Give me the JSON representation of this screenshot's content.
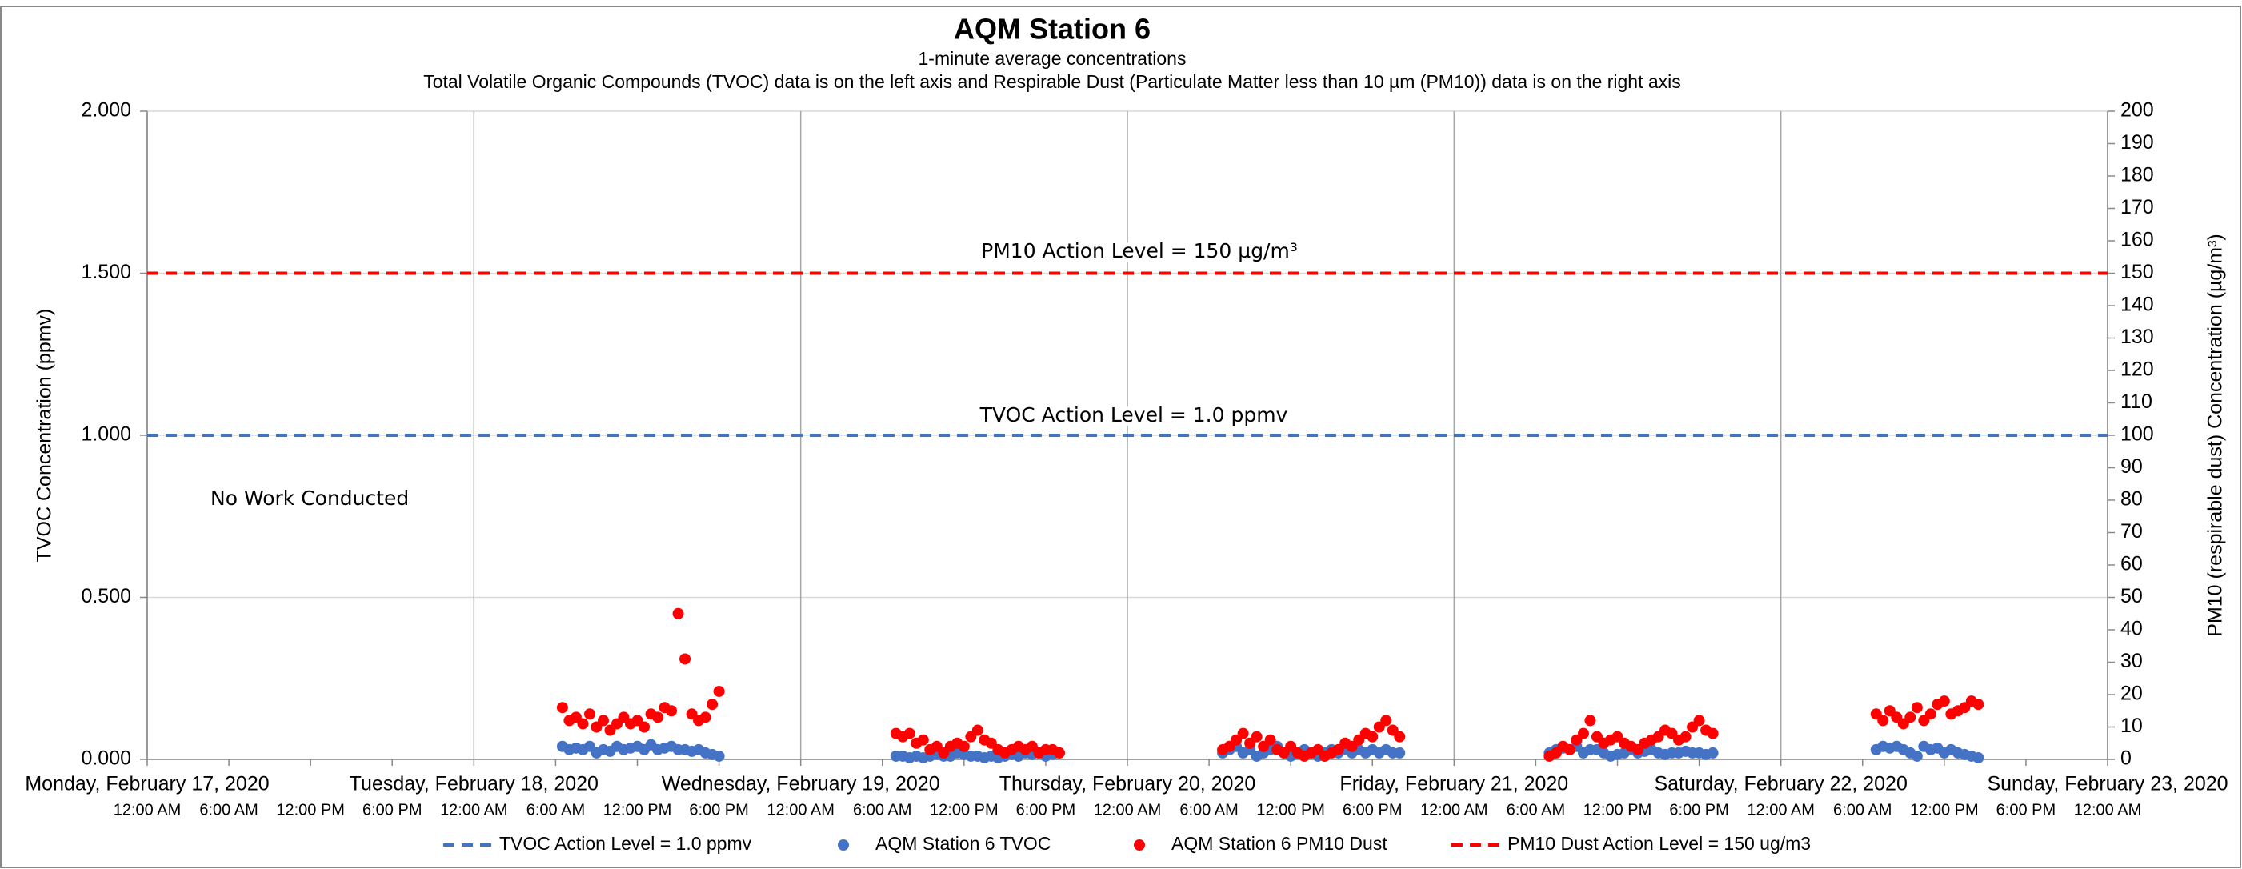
{
  "chart_data": {
    "type": "scatter",
    "title": "AQM Station 6",
    "subtitle": "1-minute average concentrations",
    "subtitle2": "Total Volatile Organic Compounds (TVOC) data is on the left axis and Respirable Dust (Particulate Matter less than 10 µm (PM10)) data is on the right axis",
    "ylabel": "TVOC Concentration (ppmv)",
    "y2label": "PM10 (respirable dust) Concentration (µg/m³)",
    "annotations": [
      "PM10 Action Level = 150 µg/m³",
      "TVOC Action Level = 1.0 ppmv",
      "No Work Conducted"
    ],
    "xlim": [
      "2020-02-17T00:00",
      "2020-02-23T00:00"
    ],
    "xticks": [
      {
        "value": "2020-02-17T00:00",
        "label": "Monday, February 17, 2020"
      },
      {
        "value": "2020-02-18T00:00",
        "label": "Tuesday, February 18, 2020"
      },
      {
        "value": "2020-02-19T00:00",
        "label": "Wednesday, February 19, 2020"
      },
      {
        "value": "2020-02-20T00:00",
        "label": "Thursday, February 20, 2020"
      },
      {
        "value": "2020-02-21T00:00",
        "label": "Friday, February 21, 2020"
      },
      {
        "value": "2020-02-22T00:00",
        "label": "Saturday, February 22, 2020"
      },
      {
        "value": "2020-02-23T00:00",
        "label": "Sunday, February 23, 2020"
      }
    ],
    "xticks_minor": [
      {
        "value": "2020-02-17T00:00",
        "label": "12:00 AM"
      },
      {
        "value": "2020-02-17T06:00",
        "label": "6:00 AM"
      },
      {
        "value": "2020-02-17T12:00",
        "label": "12:00 PM"
      },
      {
        "value": "2020-02-17T18:00",
        "label": "6:00 PM"
      },
      {
        "value": "2020-02-18T00:00",
        "label": "12:00 AM"
      },
      {
        "value": "2020-02-18T06:00",
        "label": "6:00 AM"
      },
      {
        "value": "2020-02-18T12:00",
        "label": "12:00 PM"
      },
      {
        "value": "2020-02-18T18:00",
        "label": "6:00 PM"
      },
      {
        "value": "2020-02-19T00:00",
        "label": "12:00 AM"
      },
      {
        "value": "2020-02-19T06:00",
        "label": "6:00 AM"
      },
      {
        "value": "2020-02-19T12:00",
        "label": "12:00 PM"
      },
      {
        "value": "2020-02-19T18:00",
        "label": "6:00 PM"
      },
      {
        "value": "2020-02-20T00:00",
        "label": "12:00 AM"
      },
      {
        "value": "2020-02-20T06:00",
        "label": "6:00 AM"
      },
      {
        "value": "2020-02-20T12:00",
        "label": "12:00 PM"
      },
      {
        "value": "2020-02-20T18:00",
        "label": "6:00 PM"
      },
      {
        "value": "2020-02-21T00:00",
        "label": "12:00 AM"
      },
      {
        "value": "2020-02-21T06:00",
        "label": "6:00 AM"
      },
      {
        "value": "2020-02-21T12:00",
        "label": "12:00 PM"
      },
      {
        "value": "2020-02-21T18:00",
        "label": "6:00 PM"
      },
      {
        "value": "2020-02-22T00:00",
        "label": "12:00 AM"
      },
      {
        "value": "2020-02-22T06:00",
        "label": "6:00 AM"
      },
      {
        "value": "2020-02-22T12:00",
        "label": "12:00 PM"
      },
      {
        "value": "2020-02-22T18:00",
        "label": "6:00 PM"
      },
      {
        "value": "2020-02-23T00:00",
        "label": "12:00 AM"
      }
    ],
    "ylim": [
      0,
      2
    ],
    "yticks": [
      {
        "value": 0,
        "label": "0.000"
      },
      {
        "value": 0.5,
        "label": "0.500"
      },
      {
        "value": 1,
        "label": "1.000"
      },
      {
        "value": 1.5,
        "label": "1.500"
      },
      {
        "value": 2,
        "label": "2.000"
      }
    ],
    "y2lim": [
      0,
      200
    ],
    "y2ticks": [
      0,
      10,
      20,
      30,
      40,
      50,
      60,
      70,
      80,
      90,
      100,
      110,
      120,
      130,
      140,
      150,
      160,
      170,
      180,
      190,
      200
    ],
    "grid": true,
    "legend": "bottom",
    "x": [
      "2020-02-18T06:30",
      "2020-02-18T07:00",
      "2020-02-18T07:30",
      "2020-02-18T08:00",
      "2020-02-18T08:30",
      "2020-02-18T09:00",
      "2020-02-18T09:30",
      "2020-02-18T10:00",
      "2020-02-18T10:30",
      "2020-02-18T11:00",
      "2020-02-18T11:30",
      "2020-02-18T12:00",
      "2020-02-18T12:30",
      "2020-02-18T13:00",
      "2020-02-18T13:30",
      "2020-02-18T14:00",
      "2020-02-18T14:30",
      "2020-02-18T15:00",
      "2020-02-18T15:30",
      "2020-02-18T16:00",
      "2020-02-18T16:30",
      "2020-02-18T17:00",
      "2020-02-18T17:30",
      "2020-02-18T18:00",
      "2020-02-19T07:00",
      "2020-02-19T07:30",
      "2020-02-19T08:00",
      "2020-02-19T08:30",
      "2020-02-19T09:00",
      "2020-02-19T09:30",
      "2020-02-19T10:00",
      "2020-02-19T10:30",
      "2020-02-19T11:00",
      "2020-02-19T11:30",
      "2020-02-19T12:00",
      "2020-02-19T12:30",
      "2020-02-19T13:00",
      "2020-02-19T13:30",
      "2020-02-19T14:00",
      "2020-02-19T14:30",
      "2020-02-19T15:00",
      "2020-02-19T15:30",
      "2020-02-19T16:00",
      "2020-02-19T16:30",
      "2020-02-19T17:00",
      "2020-02-19T17:30",
      "2020-02-19T18:00",
      "2020-02-19T18:30",
      "2020-02-19T19:00",
      "2020-02-20T07:00",
      "2020-02-20T07:30",
      "2020-02-20T08:00",
      "2020-02-20T08:30",
      "2020-02-20T09:00",
      "2020-02-20T09:30",
      "2020-02-20T10:00",
      "2020-02-20T10:30",
      "2020-02-20T11:00",
      "2020-02-20T11:30",
      "2020-02-20T12:00",
      "2020-02-20T12:30",
      "2020-02-20T13:00",
      "2020-02-20T13:30",
      "2020-02-20T14:00",
      "2020-02-20T14:30",
      "2020-02-20T15:00",
      "2020-02-20T15:30",
      "2020-02-20T16:00",
      "2020-02-20T16:30",
      "2020-02-20T17:00",
      "2020-02-20T17:30",
      "2020-02-20T18:00",
      "2020-02-20T18:30",
      "2020-02-20T19:00",
      "2020-02-20T19:30",
      "2020-02-20T20:00",
      "2020-02-21T07:00",
      "2020-02-21T07:30",
      "2020-02-21T08:00",
      "2020-02-21T08:30",
      "2020-02-21T09:00",
      "2020-02-21T09:30",
      "2020-02-21T10:00",
      "2020-02-21T10:30",
      "2020-02-21T11:00",
      "2020-02-21T11:30",
      "2020-02-21T12:00",
      "2020-02-21T12:30",
      "2020-02-21T13:00",
      "2020-02-21T13:30",
      "2020-02-21T14:00",
      "2020-02-21T14:30",
      "2020-02-21T15:00",
      "2020-02-21T15:30",
      "2020-02-21T16:00",
      "2020-02-21T16:30",
      "2020-02-21T17:00",
      "2020-02-21T17:30",
      "2020-02-21T18:00",
      "2020-02-21T18:30",
      "2020-02-21T19:00",
      "2020-02-22T07:00",
      "2020-02-22T07:30",
      "2020-02-22T08:00",
      "2020-02-22T08:30",
      "2020-02-22T09:00",
      "2020-02-22T09:30",
      "2020-02-22T10:00",
      "2020-02-22T10:30",
      "2020-02-22T11:00",
      "2020-02-22T11:30",
      "2020-02-22T12:00",
      "2020-02-22T12:30",
      "2020-02-22T13:00",
      "2020-02-22T13:30",
      "2020-02-22T14:00",
      "2020-02-22T14:30"
    ],
    "series": [
      {
        "name": "TVOC Action Level = 1.0 ppmv",
        "kind": "hline",
        "color": "#4472c4",
        "value": 1.0,
        "axis": "y"
      },
      {
        "name": "AQM Station 6 TVOC",
        "kind": "scatter",
        "color": "#4472c4",
        "axis": "y",
        "values": [
          0.04,
          0.03,
          0.035,
          0.03,
          0.04,
          0.02,
          0.03,
          0.025,
          0.04,
          0.03,
          0.035,
          0.04,
          0.03,
          0.045,
          0.03,
          0.035,
          0.04,
          0.03,
          0.03,
          0.025,
          0.03,
          0.02,
          0.015,
          0.01,
          0.01,
          0.01,
          0.005,
          0.01,
          0.005,
          0.01,
          0.015,
          0.01,
          0.01,
          0.02,
          0.015,
          0.01,
          0.01,
          0.005,
          0.01,
          0.005,
          0.01,
          0.015,
          0.01,
          0.02,
          0.015,
          0.02,
          0.01,
          0.015,
          0.02,
          0.02,
          0.03,
          0.04,
          0.02,
          0.03,
          0.01,
          0.02,
          0.03,
          0.04,
          0.02,
          0.01,
          0.02,
          0.03,
          0.02,
          0.01,
          0.02,
          0.03,
          0.02,
          0.03,
          0.02,
          0.03,
          0.02,
          0.03,
          0.02,
          0.03,
          0.02,
          0.02,
          0.02,
          0.03,
          0.035,
          0.03,
          0.04,
          0.02,
          0.03,
          0.03,
          0.02,
          0.01,
          0.015,
          0.02,
          0.03,
          0.02,
          0.025,
          0.03,
          0.02,
          0.015,
          0.02,
          0.02,
          0.025,
          0.02,
          0.02,
          0.015,
          0.02,
          0.03,
          0.04,
          0.035,
          0.04,
          0.03,
          0.02,
          0.01,
          0.04,
          0.03,
          0.035,
          0.02,
          0.03,
          0.02,
          0.015,
          0.01,
          0.005
        ]
      },
      {
        "name": "AQM Station 6 PM10 Dust",
        "kind": "scatter",
        "color": "#ff0000",
        "axis": "y2",
        "values": [
          16,
          12,
          13,
          11,
          14,
          10,
          12,
          9,
          11,
          13,
          11,
          12,
          10,
          14,
          13,
          16,
          15,
          45,
          31,
          14,
          12,
          13,
          17,
          21,
          8,
          7,
          8,
          5,
          6,
          3,
          4,
          2,
          4,
          5,
          4,
          7,
          9,
          6,
          5,
          3,
          2,
          3,
          4,
          3,
          4,
          2,
          3,
          3,
          2,
          3,
          4,
          6,
          8,
          5,
          7,
          4,
          6,
          3,
          2,
          4,
          2,
          1,
          2,
          3,
          1,
          2,
          3,
          5,
          4,
          6,
          8,
          7,
          10,
          12,
          9,
          7,
          1,
          2,
          4,
          3,
          6,
          8,
          12,
          7,
          5,
          6,
          7,
          5,
          4,
          3,
          5,
          6,
          7,
          9,
          8,
          6,
          7,
          10,
          12,
          9,
          8,
          14,
          12,
          15,
          13,
          11,
          13,
          16,
          12,
          14,
          17,
          18,
          14,
          15,
          16,
          18,
          17
        ]
      },
      {
        "name": "PM10 Dust Action Level = 150 ug/m3",
        "kind": "hline",
        "color": "#ff0000",
        "value": 150,
        "axis": "y2"
      }
    ]
  }
}
